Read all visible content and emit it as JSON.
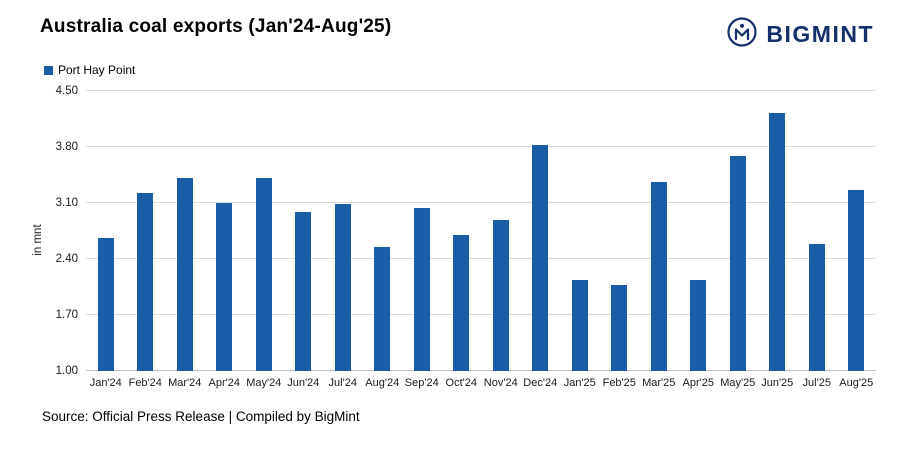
{
  "header": {
    "logo_text": "BIGMINT",
    "logo_color": "#14306b"
  },
  "chart_data": {
    "type": "bar",
    "title": "Australia coal exports (Jan'24-Aug'25)",
    "series_name": "Port Hay Point",
    "ylabel": "in mnt",
    "xlabel": "",
    "ylim": [
      1.0,
      4.5
    ],
    "ytick_step": 0.7,
    "grid": true,
    "legend_position": "top-left",
    "bar_color": "#1a5ca8",
    "categories": [
      "Jan'24",
      "Feb'24",
      "Mar'24",
      "Apr'24",
      "May'24",
      "Jun'24",
      "Jul'24",
      "Aug'24",
      "Sep'24",
      "Oct'24",
      "Nov'24",
      "Dec'24",
      "Jan'25",
      "Feb'25",
      "Mar'25",
      "Apr'25",
      "May'25",
      "Jun'25",
      "Jul'25",
      "Aug'25"
    ],
    "values": [
      2.66,
      3.23,
      3.41,
      3.1,
      3.41,
      2.99,
      3.09,
      2.55,
      3.04,
      2.7,
      2.89,
      3.82,
      2.14,
      2.08,
      3.36,
      2.14,
      3.69,
      4.23,
      2.59,
      3.26
    ]
  },
  "footer": {
    "source": "Source: Official Press Release | Compiled by BigMint"
  }
}
